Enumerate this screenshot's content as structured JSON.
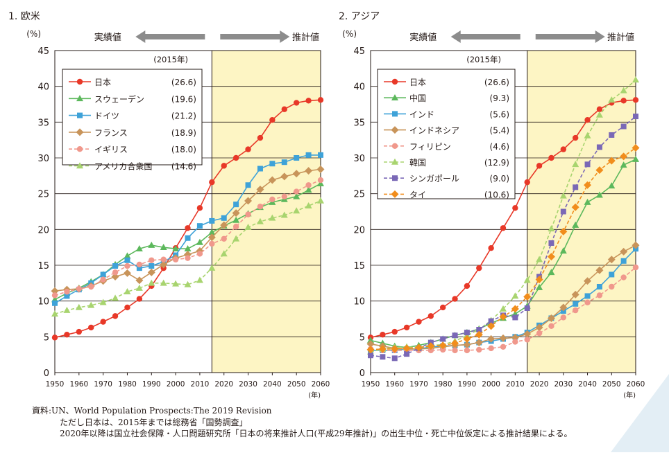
{
  "colors": {
    "forecast_fill": "#fdf5c4",
    "corner_accent": "#e3eef5",
    "arrow": "#8c8c8c",
    "grid": "#231815"
  },
  "chart_data": [
    {
      "type": "line",
      "title": "1. 欧米",
      "ylabel": "(%)",
      "xunit": "(年)",
      "ylim": [
        0,
        45
      ],
      "xlim": [
        1950,
        2060
      ],
      "yticks": [
        0,
        5,
        10,
        15,
        20,
        25,
        30,
        35,
        40,
        45
      ],
      "xticks": [
        1950,
        1960,
        1970,
        1980,
        1990,
        2000,
        2010,
        2020,
        2030,
        2040,
        2050,
        2060
      ],
      "actual_label": "実績値",
      "forecast_label": "推計値",
      "forecast_start": 2015,
      "legend_header": "(2015年)",
      "legend_position": "top-left",
      "series": [
        {
          "name": "日本",
          "legend_value": "(26.6)",
          "color": "#e83828",
          "marker": "circle",
          "dashed": false,
          "x": [
            1950,
            1955,
            1960,
            1965,
            1970,
            1975,
            1980,
            1985,
            1990,
            1995,
            2000,
            2005,
            2010,
            2015,
            2020,
            2025,
            2030,
            2035,
            2040,
            2045,
            2050,
            2055,
            2060
          ],
          "values": [
            4.9,
            5.3,
            5.7,
            6.3,
            7.1,
            7.9,
            9.1,
            10.3,
            12.1,
            14.6,
            17.4,
            20.2,
            23.0,
            26.6,
            28.9,
            30.0,
            31.2,
            32.8,
            35.3,
            36.8,
            37.7,
            38.0,
            38.1
          ]
        },
        {
          "name": "スウェーデン",
          "legend_value": "(19.6)",
          "color": "#5cb85c",
          "marker": "triangle",
          "dashed": false,
          "x": [
            1950,
            1955,
            1960,
            1965,
            1970,
            1975,
            1980,
            1985,
            1990,
            1995,
            2000,
            2005,
            2010,
            2015,
            2020,
            2025,
            2030,
            2035,
            2040,
            2045,
            2050,
            2055,
            2060
          ],
          "values": [
            10.2,
            11.1,
            11.8,
            12.7,
            13.7,
            15.1,
            16.3,
            17.3,
            17.8,
            17.5,
            17.3,
            17.3,
            18.2,
            19.6,
            20.5,
            21.3,
            22.2,
            23.1,
            23.8,
            24.2,
            24.6,
            25.5,
            26.4
          ]
        },
        {
          "name": "ドイツ",
          "legend_value": "(21.2)",
          "color": "#3ea2d8",
          "marker": "square",
          "dashed": false,
          "x": [
            1950,
            1955,
            1960,
            1965,
            1970,
            1975,
            1980,
            1985,
            1990,
            1995,
            2000,
            2005,
            2010,
            2015,
            2020,
            2025,
            2030,
            2035,
            2040,
            2045,
            2050,
            2055,
            2060
          ],
          "values": [
            9.7,
            10.7,
            11.6,
            12.5,
            13.7,
            14.9,
            15.7,
            14.6,
            14.9,
            15.5,
            16.4,
            18.8,
            20.5,
            21.2,
            21.6,
            23.5,
            26.2,
            28.5,
            29.2,
            29.4,
            30.0,
            30.4,
            30.4
          ]
        },
        {
          "name": "フランス",
          "legend_value": "(18.9)",
          "color": "#c8945a",
          "marker": "diamond",
          "dashed": false,
          "x": [
            1950,
            1955,
            1960,
            1965,
            1970,
            1975,
            1980,
            1985,
            1990,
            1995,
            2000,
            2005,
            2010,
            2015,
            2020,
            2025,
            2030,
            2035,
            2040,
            2045,
            2050,
            2055,
            2060
          ],
          "values": [
            11.4,
            11.6,
            11.7,
            12.1,
            12.8,
            13.4,
            13.9,
            12.9,
            14.0,
            15.1,
            16.0,
            16.5,
            17.0,
            18.9,
            20.6,
            22.3,
            24.0,
            25.6,
            26.9,
            27.4,
            27.8,
            28.2,
            28.4
          ]
        },
        {
          "name": "イギリス",
          "legend_value": "(18.0)",
          "color": "#f0988c",
          "marker": "circle",
          "dashed": true,
          "x": [
            1950,
            1955,
            1960,
            1965,
            1970,
            1975,
            1980,
            1985,
            1990,
            1995,
            2000,
            2005,
            2010,
            2015,
            2020,
            2025,
            2030,
            2035,
            2040,
            2045,
            2050,
            2055,
            2060
          ],
          "values": [
            10.8,
            11.3,
            11.7,
            12.0,
            13.0,
            14.0,
            14.9,
            15.1,
            15.7,
            15.8,
            15.8,
            16.0,
            16.6,
            18.0,
            18.7,
            20.4,
            22.1,
            23.2,
            24.2,
            24.6,
            25.3,
            26.2,
            26.9
          ]
        },
        {
          "name": "アメリカ合衆国",
          "legend_value": "(14.6)",
          "color": "#a8d46f",
          "marker": "triangle",
          "dashed": true,
          "x": [
            1950,
            1955,
            1960,
            1965,
            1970,
            1975,
            1980,
            1985,
            1990,
            1995,
            2000,
            2005,
            2010,
            2015,
            2020,
            2025,
            2030,
            2035,
            2040,
            2045,
            2050,
            2055,
            2060
          ],
          "values": [
            8.2,
            8.7,
            9.1,
            9.4,
            9.8,
            10.4,
            11.3,
            11.8,
            12.5,
            12.5,
            12.4,
            12.3,
            12.9,
            14.6,
            16.6,
            18.7,
            20.3,
            21.1,
            21.6,
            22.0,
            22.6,
            23.3,
            24.0
          ]
        }
      ]
    },
    {
      "type": "line",
      "title": "2. アジア",
      "ylabel": "(%)",
      "xunit": "(年)",
      "ylim": [
        0,
        45
      ],
      "xlim": [
        1950,
        2060
      ],
      "yticks": [
        0,
        5,
        10,
        15,
        20,
        25,
        30,
        35,
        40,
        45
      ],
      "xticks": [
        1950,
        1960,
        1970,
        1980,
        1990,
        2000,
        2010,
        2020,
        2030,
        2040,
        2050,
        2060
      ],
      "actual_label": "実績値",
      "forecast_label": "推計値",
      "forecast_start": 2015,
      "legend_header": "(2015年)",
      "legend_position": "top-left",
      "series": [
        {
          "name": "日本",
          "legend_value": "(26.6)",
          "color": "#e83828",
          "marker": "circle",
          "dashed": false,
          "x": [
            1950,
            1955,
            1960,
            1965,
            1970,
            1975,
            1980,
            1985,
            1990,
            1995,
            2000,
            2005,
            2010,
            2015,
            2020,
            2025,
            2030,
            2035,
            2040,
            2045,
            2050,
            2055,
            2060
          ],
          "values": [
            4.9,
            5.3,
            5.7,
            6.3,
            7.1,
            7.9,
            9.1,
            10.3,
            12.1,
            14.6,
            17.4,
            20.2,
            23.0,
            26.6,
            28.9,
            30.0,
            31.2,
            32.8,
            35.3,
            36.8,
            37.7,
            38.0,
            38.1
          ]
        },
        {
          "name": "中国",
          "legend_value": "(9.3)",
          "color": "#5cb85c",
          "marker": "triangle",
          "dashed": false,
          "x": [
            1950,
            1955,
            1960,
            1965,
            1970,
            1975,
            1980,
            1985,
            1990,
            1995,
            2000,
            2005,
            2010,
            2015,
            2020,
            2025,
            2030,
            2035,
            2040,
            2045,
            2050,
            2055,
            2060
          ],
          "values": [
            4.5,
            4.1,
            3.7,
            3.5,
            3.8,
            4.2,
            4.7,
            5.2,
            5.6,
            6.1,
            6.9,
            7.6,
            8.2,
            9.3,
            11.9,
            14.0,
            17.0,
            20.6,
            23.8,
            24.8,
            26.1,
            29.0,
            29.8
          ]
        },
        {
          "name": "インド",
          "legend_value": "(5.6)",
          "color": "#3ea2d8",
          "marker": "square",
          "dashed": false,
          "x": [
            1950,
            1955,
            1960,
            1965,
            1970,
            1975,
            1980,
            1985,
            1990,
            1995,
            2000,
            2005,
            2010,
            2015,
            2020,
            2025,
            2030,
            2035,
            2040,
            2045,
            2050,
            2055,
            2060
          ],
          "values": [
            3.1,
            3.1,
            3.1,
            3.3,
            3.3,
            3.6,
            3.7,
            3.8,
            3.9,
            4.2,
            4.4,
            4.7,
            5.0,
            5.6,
            6.6,
            7.6,
            8.6,
            9.6,
            10.7,
            12.0,
            13.7,
            15.6,
            17.3
          ]
        },
        {
          "name": "インドネシア",
          "legend_value": "(5.4)",
          "color": "#c8945a",
          "marker": "diamond",
          "dashed": false,
          "x": [
            1950,
            1955,
            1960,
            1965,
            1970,
            1975,
            1980,
            1985,
            1990,
            1995,
            2000,
            2005,
            2010,
            2015,
            2020,
            2025,
            2030,
            2035,
            2040,
            2045,
            2050,
            2055,
            2060
          ],
          "values": [
            4.0,
            3.7,
            3.4,
            3.3,
            3.3,
            3.4,
            3.6,
            3.8,
            3.9,
            4.2,
            4.7,
            4.8,
            4.9,
            5.4,
            6.3,
            7.6,
            9.1,
            10.9,
            12.8,
            14.3,
            15.8,
            16.9,
            17.8
          ]
        },
        {
          "name": "フィリピン",
          "legend_value": "(4.6)",
          "color": "#f0988c",
          "marker": "circle",
          "dashed": true,
          "x": [
            1950,
            1955,
            1960,
            1965,
            1970,
            1975,
            1980,
            1985,
            1990,
            1995,
            2000,
            2005,
            2010,
            2015,
            2020,
            2025,
            2030,
            2035,
            2040,
            2045,
            2050,
            2055,
            2060
          ],
          "values": [
            3.3,
            3.1,
            3.1,
            3.1,
            3.1,
            3.1,
            3.2,
            3.1,
            3.1,
            3.2,
            3.4,
            3.6,
            4.3,
            4.6,
            5.5,
            6.5,
            7.7,
            8.7,
            9.8,
            10.8,
            12.0,
            13.3,
            14.7
          ]
        },
        {
          "name": "韓国",
          "legend_value": "(12.9)",
          "color": "#a8d46f",
          "marker": "triangle",
          "dashed": true,
          "x": [
            1950,
            1955,
            1960,
            1965,
            1970,
            1975,
            1980,
            1985,
            1990,
            1995,
            2000,
            2005,
            2010,
            2015,
            2020,
            2025,
            2030,
            2035,
            2040,
            2045,
            2050,
            2055,
            2060
          ],
          "values": [
            2.9,
            3.3,
            3.5,
            3.6,
            3.5,
            3.8,
            3.9,
            4.4,
            5.2,
            6.0,
            7.3,
            8.9,
            10.7,
            12.9,
            15.8,
            20.1,
            24.7,
            29.1,
            33.1,
            36.0,
            38.1,
            39.4,
            40.9
          ]
        },
        {
          "name": "シンガポール",
          "legend_value": "(9.0)",
          "color": "#7a68b6",
          "marker": "square",
          "dashed": true,
          "x": [
            1950,
            1955,
            1960,
            1965,
            1970,
            1975,
            1980,
            1985,
            1990,
            1995,
            2000,
            2005,
            2010,
            2015,
            2020,
            2025,
            2030,
            2035,
            2040,
            2045,
            2050,
            2055,
            2060
          ],
          "values": [
            2.4,
            2.2,
            2.0,
            2.6,
            3.4,
            4.2,
            4.7,
            5.2,
            5.6,
            6.0,
            7.2,
            8.0,
            7.7,
            9.0,
            13.4,
            18.1,
            22.5,
            25.9,
            29.1,
            31.5,
            33.2,
            34.4,
            35.8
          ]
        },
        {
          "name": "タイ",
          "legend_value": "(10.6)",
          "color": "#f18d1c",
          "marker": "diamond",
          "dashed": true,
          "x": [
            1950,
            1955,
            1960,
            1965,
            1970,
            1975,
            1980,
            1985,
            1990,
            1995,
            2000,
            2005,
            2010,
            2015,
            2020,
            2025,
            2030,
            2035,
            2040,
            2045,
            2050,
            2055,
            2060
          ],
          "values": [
            3.2,
            3.3,
            3.3,
            3.4,
            3.5,
            3.7,
            3.8,
            4.1,
            4.7,
            5.3,
            6.5,
            7.8,
            8.9,
            10.6,
            13.0,
            16.2,
            19.7,
            23.1,
            26.2,
            28.3,
            29.6,
            30.2,
            31.4
          ]
        }
      ]
    }
  ],
  "source": {
    "line1": "資料:UN、World Population Prospects:The 2019 Revision",
    "line2": "ただし日本は、2015年までは総務省「国勢調査」",
    "line3": "2020年以降は国立社会保障・人口問題研究所「日本の将来推計人口(平成29年推計)」の出生中位・死亡中位仮定による推計結果による。"
  }
}
